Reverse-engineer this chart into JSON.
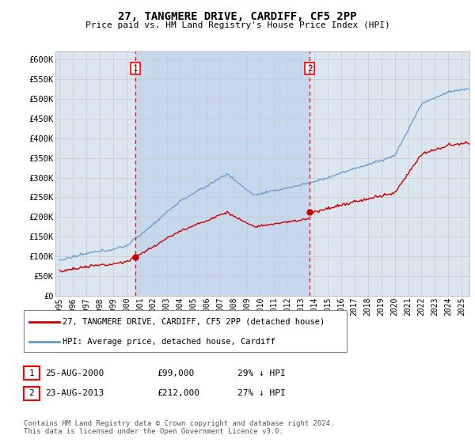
{
  "title": "27, TANGMERE DRIVE, CARDIFF, CF5 2PP",
  "subtitle": "Price paid vs. HM Land Registry's House Price Index (HPI)",
  "legend_line1": "27, TANGMERE DRIVE, CARDIFF, CF5 2PP (detached house)",
  "legend_line2": "HPI: Average price, detached house, Cardiff",
  "footer": "Contains HM Land Registry data © Crown copyright and database right 2024.\nThis data is licensed under the Open Government Licence v3.0.",
  "annotation1_date": "25-AUG-2000",
  "annotation1_price": "£99,000",
  "annotation1_hpi": "29% ↓ HPI",
  "annotation2_date": "23-AUG-2013",
  "annotation2_price": "£212,000",
  "annotation2_hpi": "27% ↓ HPI",
  "sale1_year": 2000.65,
  "sale1_price": 99000,
  "sale2_year": 2013.65,
  "sale2_price": 212000,
  "ylim": [
    0,
    620000
  ],
  "yticks": [
    0,
    50000,
    100000,
    150000,
    200000,
    250000,
    300000,
    350000,
    400000,
    450000,
    500000,
    550000,
    600000
  ],
  "ytick_labels": [
    "£0",
    "£50K",
    "£100K",
    "£150K",
    "£200K",
    "£250K",
    "£300K",
    "£350K",
    "£400K",
    "£450K",
    "£500K",
    "£550K",
    "£600K"
  ],
  "plot_bg_color": "#dce6f1",
  "shade_color": "#c5d8ee",
  "line_color_red": "#cc0000",
  "line_color_blue": "#6699cc",
  "grid_color": "#cccccc",
  "xmin": 1994.7,
  "xmax": 2025.6
}
